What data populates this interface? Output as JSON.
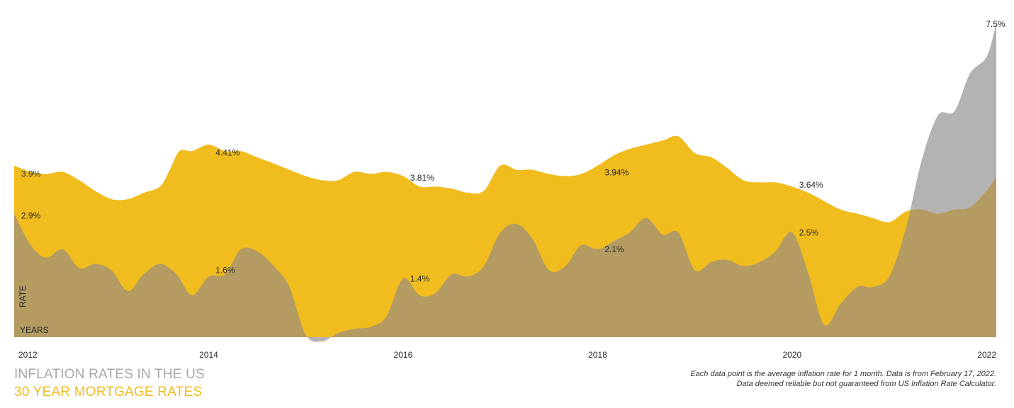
{
  "chart_data": {
    "type": "area",
    "title": "",
    "xlabel": "YEARS",
    "ylabel": "RATE",
    "x_ticks": [
      "2012",
      "2014",
      "2016",
      "2018",
      "2020",
      "2022"
    ],
    "xlim": [
      2012.0,
      2022.1
    ],
    "ylim": [
      -0.2,
      7.5
    ],
    "grid": false,
    "legend_position": "bottom-left",
    "series": [
      {
        "name": "30 YEAR MORTGAGE RATES",
        "color": "#f0bc1e",
        "points": [
          [
            2012.0,
            4.1
          ],
          [
            2012.17,
            3.95
          ],
          [
            2012.33,
            3.9
          ],
          [
            2012.5,
            3.95
          ],
          [
            2012.67,
            3.75
          ],
          [
            2012.83,
            3.5
          ],
          [
            2013.0,
            3.3
          ],
          [
            2013.17,
            3.3
          ],
          [
            2013.33,
            3.45
          ],
          [
            2013.5,
            3.6
          ],
          [
            2013.6,
            4.0
          ],
          [
            2013.7,
            4.45
          ],
          [
            2013.83,
            4.45
          ],
          [
            2014.0,
            4.6
          ],
          [
            2014.17,
            4.45
          ],
          [
            2014.33,
            4.45
          ],
          [
            2014.5,
            4.3
          ],
          [
            2014.67,
            4.15
          ],
          [
            2014.83,
            4.0
          ],
          [
            2015.0,
            3.85
          ],
          [
            2015.17,
            3.75
          ],
          [
            2015.33,
            3.75
          ],
          [
            2015.5,
            3.95
          ],
          [
            2015.67,
            3.9
          ],
          [
            2015.83,
            3.95
          ],
          [
            2016.0,
            3.85
          ],
          [
            2016.17,
            3.6
          ],
          [
            2016.33,
            3.6
          ],
          [
            2016.5,
            3.55
          ],
          [
            2016.67,
            3.45
          ],
          [
            2016.83,
            3.5
          ],
          [
            2017.0,
            4.1
          ],
          [
            2017.17,
            4.0
          ],
          [
            2017.33,
            4.0
          ],
          [
            2017.5,
            3.9
          ],
          [
            2017.67,
            3.85
          ],
          [
            2017.83,
            3.9
          ],
          [
            2018.0,
            4.1
          ],
          [
            2018.17,
            4.35
          ],
          [
            2018.33,
            4.5
          ],
          [
            2018.5,
            4.6
          ],
          [
            2018.67,
            4.7
          ],
          [
            2018.83,
            4.8
          ],
          [
            2019.0,
            4.4
          ],
          [
            2019.17,
            4.3
          ],
          [
            2019.33,
            4.05
          ],
          [
            2019.5,
            3.75
          ],
          [
            2019.67,
            3.7
          ],
          [
            2019.83,
            3.7
          ],
          [
            2020.0,
            3.6
          ],
          [
            2020.17,
            3.45
          ],
          [
            2020.33,
            3.25
          ],
          [
            2020.5,
            3.05
          ],
          [
            2020.67,
            2.95
          ],
          [
            2020.83,
            2.85
          ],
          [
            2021.0,
            2.75
          ],
          [
            2021.17,
            3.0
          ],
          [
            2021.33,
            3.05
          ],
          [
            2021.5,
            2.95
          ],
          [
            2021.67,
            3.05
          ],
          [
            2021.83,
            3.1
          ],
          [
            2022.0,
            3.5
          ],
          [
            2022.1,
            3.85
          ]
        ]
      },
      {
        "name": "INFLATION RATES IN THE US",
        "color": "#b3b3b3",
        "points": [
          [
            2012.0,
            2.95
          ],
          [
            2012.17,
            2.2
          ],
          [
            2012.33,
            1.9
          ],
          [
            2012.5,
            2.1
          ],
          [
            2012.67,
            1.65
          ],
          [
            2012.83,
            1.75
          ],
          [
            2013.0,
            1.6
          ],
          [
            2013.17,
            1.1
          ],
          [
            2013.33,
            1.5
          ],
          [
            2013.5,
            1.75
          ],
          [
            2013.67,
            1.5
          ],
          [
            2013.83,
            1.0
          ],
          [
            2014.0,
            1.45
          ],
          [
            2014.17,
            1.5
          ],
          [
            2014.33,
            2.1
          ],
          [
            2014.5,
            2.05
          ],
          [
            2014.67,
            1.7
          ],
          [
            2014.83,
            1.2
          ],
          [
            2015.0,
            0.05
          ],
          [
            2015.17,
            -0.1
          ],
          [
            2015.33,
            0.1
          ],
          [
            2015.5,
            0.2
          ],
          [
            2015.67,
            0.25
          ],
          [
            2015.83,
            0.5
          ],
          [
            2016.0,
            1.4
          ],
          [
            2016.17,
            1.0
          ],
          [
            2016.33,
            1.05
          ],
          [
            2016.5,
            1.5
          ],
          [
            2016.67,
            1.45
          ],
          [
            2016.83,
            1.7
          ],
          [
            2017.0,
            2.5
          ],
          [
            2017.17,
            2.7
          ],
          [
            2017.33,
            2.35
          ],
          [
            2017.5,
            1.6
          ],
          [
            2017.67,
            1.7
          ],
          [
            2017.83,
            2.2
          ],
          [
            2018.0,
            2.1
          ],
          [
            2018.17,
            2.3
          ],
          [
            2018.33,
            2.5
          ],
          [
            2018.5,
            2.85
          ],
          [
            2018.67,
            2.45
          ],
          [
            2018.83,
            2.5
          ],
          [
            2019.0,
            1.6
          ],
          [
            2019.17,
            1.8
          ],
          [
            2019.33,
            1.85
          ],
          [
            2019.5,
            1.7
          ],
          [
            2019.67,
            1.8
          ],
          [
            2019.83,
            2.05
          ],
          [
            2020.0,
            2.5
          ],
          [
            2020.17,
            1.5
          ],
          [
            2020.33,
            0.3
          ],
          [
            2020.5,
            0.8
          ],
          [
            2020.67,
            1.2
          ],
          [
            2020.83,
            1.2
          ],
          [
            2021.0,
            1.45
          ],
          [
            2021.17,
            2.6
          ],
          [
            2021.33,
            4.2
          ],
          [
            2021.5,
            5.3
          ],
          [
            2021.67,
            5.4
          ],
          [
            2021.83,
            6.3
          ],
          [
            2022.0,
            6.7
          ],
          [
            2022.1,
            7.5
          ]
        ]
      }
    ],
    "annotations": [
      {
        "text": "3.9%",
        "x": 2012.05,
        "y": 3.9,
        "series": "mortgage"
      },
      {
        "text": "4.41%",
        "x": 2014.05,
        "y": 4.41,
        "series": "mortgage"
      },
      {
        "text": "3.81%",
        "x": 2016.05,
        "y": 3.81,
        "series": "mortgage"
      },
      {
        "text": "3.94%",
        "x": 2018.05,
        "y": 3.94,
        "series": "mortgage"
      },
      {
        "text": "3.64%",
        "x": 2020.05,
        "y": 3.64,
        "series": "mortgage"
      },
      {
        "text": "2.9%",
        "x": 2012.05,
        "y": 2.9,
        "series": "inflation"
      },
      {
        "text": "1.6%",
        "x": 2014.05,
        "y": 1.6,
        "series": "inflation"
      },
      {
        "text": "1.4%",
        "x": 2016.05,
        "y": 1.4,
        "series": "inflation"
      },
      {
        "text": "2.1%",
        "x": 2018.05,
        "y": 2.1,
        "series": "inflation"
      },
      {
        "text": "2.5%",
        "x": 2020.05,
        "y": 2.5,
        "series": "inflation"
      },
      {
        "text": "7.5%",
        "x": 2021.97,
        "y": 7.5,
        "series": "inflation"
      }
    ],
    "overlap_color": "#b39b62"
  },
  "legend": {
    "inflation": "INFLATION RATES IN THE US",
    "mortgage": "30 YEAR MORTGAGE RATES"
  },
  "footnote": {
    "line1": "Each data point is the average inflation rate for 1 month. Data is from February 17, 2022.",
    "line2": "Data deemed reliable but not guaranteed from US Inflation Rate Calculator."
  }
}
